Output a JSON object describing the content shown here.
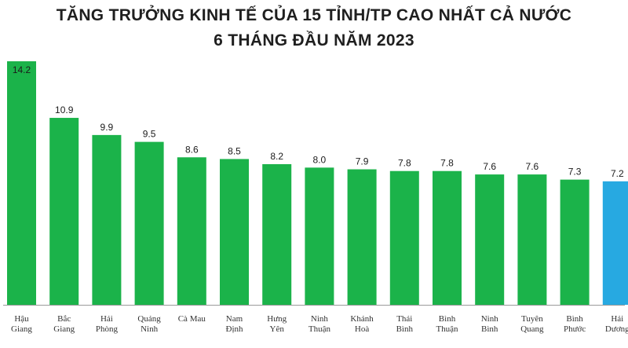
{
  "title_line1": "TĂNG TRƯỞNG KINH TẾ CỦA 15 TỈNH/TP CAO NHẤT CẢ NƯỚC",
  "title_line2": "6 THÁNG ĐẦU NĂM 2023",
  "colors": {
    "default_bar": "#1bb34a",
    "highlight_bar": "#27a9e1"
  },
  "chart_data": {
    "type": "bar",
    "title": "TĂNG TRƯỞNG KINH TẾ CỦA 15 TỈNH/TP CAO NHẤT CẢ NƯỚC 6 THÁNG ĐẦU NĂM 2023",
    "xlabel": "",
    "ylabel": "",
    "ylim": [
      0,
      14.2
    ],
    "grid": false,
    "categories": [
      [
        "Hậu",
        "Giang"
      ],
      [
        "Bắc",
        "Giang"
      ],
      [
        "Hải",
        "Phòng"
      ],
      [
        "Quảng",
        "Ninh"
      ],
      [
        "Cà Mau"
      ],
      [
        "Nam",
        "Định"
      ],
      [
        "Hưng",
        "Yên"
      ],
      [
        "Ninh",
        "Thuận"
      ],
      [
        "Khánh",
        "Hoà"
      ],
      [
        "Thái",
        "Bình"
      ],
      [
        "Bình",
        "Thuận"
      ],
      [
        "Ninh",
        "Bình"
      ],
      [
        "Tuyên",
        "Quang"
      ],
      [
        "Bình",
        "Phước"
      ],
      [
        "Hải",
        "Dương"
      ]
    ],
    "values": [
      14.2,
      10.9,
      9.9,
      9.5,
      8.6,
      8.5,
      8.2,
      8.0,
      7.9,
      7.8,
      7.8,
      7.6,
      7.6,
      7.3,
      7.2
    ],
    "value_labels": [
      "14.2",
      "10.9",
      "9.9",
      "9.5",
      "8.6",
      "8.5",
      "8.2",
      "8.0",
      "7.9",
      "7.8",
      "7.8",
      "7.6",
      "7.6",
      "7.3",
      "7.2"
    ],
    "highlight_index": 14
  }
}
